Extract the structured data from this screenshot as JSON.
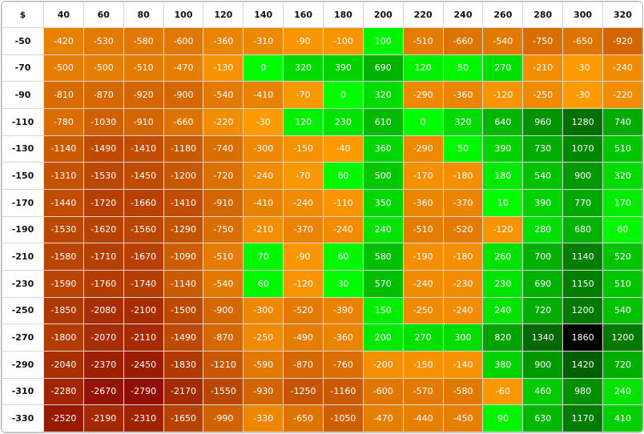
{
  "table": {
    "corner_label": "$",
    "columns": [
      "40",
      "60",
      "80",
      "100",
      "120",
      "140",
      "160",
      "180",
      "200",
      "220",
      "240",
      "260",
      "280",
      "300",
      "320"
    ],
    "rows": [
      {
        "label": "-50",
        "values": [
          "-420",
          "-530",
          "-580",
          "-600",
          "-360",
          "-310",
          "-90",
          "-100",
          "100",
          "-510",
          "-660",
          "-540",
          "-750",
          "-650",
          "-920"
        ]
      },
      {
        "label": "-70",
        "values": [
          "-500",
          "-500",
          "-510",
          "-470",
          "-130",
          "0",
          "320",
          "390",
          "690",
          "120",
          "50",
          "270",
          "-210",
          "-30",
          "-240"
        ]
      },
      {
        "label": "-90",
        "values": [
          "-810",
          "-870",
          "-920",
          "-900",
          "-540",
          "-410",
          "-70",
          "0",
          "320",
          "-290",
          "-360",
          "-120",
          "-250",
          "-30",
          "-220"
        ]
      },
      {
        "label": "-110",
        "values": [
          "-780",
          "-1030",
          "-910",
          "-660",
          "-220",
          "-30",
          "120",
          "230",
          "610",
          "0",
          "320",
          "640",
          "960",
          "1280",
          "740"
        ]
      },
      {
        "label": "-130",
        "values": [
          "-1140",
          "-1490",
          "-1410",
          "-1180",
          "-740",
          "-300",
          "-150",
          "-40",
          "360",
          "-290",
          "50",
          "390",
          "730",
          "1070",
          "510"
        ]
      },
      {
        "label": "-150",
        "values": [
          "-1310",
          "-1530",
          "-1450",
          "-1200",
          "-720",
          "-240",
          "-70",
          "60",
          "500",
          "-170",
          "-180",
          "180",
          "540",
          "900",
          "320"
        ]
      },
      {
        "label": "-170",
        "values": [
          "-1440",
          "-1720",
          "-1660",
          "-1410",
          "-910",
          "-410",
          "-240",
          "-110",
          "350",
          "-360",
          "-370",
          "10",
          "390",
          "770",
          "170"
        ]
      },
      {
        "label": "-190",
        "values": [
          "-1530",
          "-1620",
          "-1560",
          "-1290",
          "-750",
          "-210",
          "-370",
          "-240",
          "240",
          "-510",
          "-520",
          "-120",
          "280",
          "680",
          "60"
        ]
      },
      {
        "label": "-210",
        "values": [
          "-1580",
          "-1710",
          "-1670",
          "-1090",
          "-510",
          "70",
          "-90",
          "60",
          "580",
          "-190",
          "-180",
          "260",
          "700",
          "1140",
          "520"
        ]
      },
      {
        "label": "-230",
        "values": [
          "-1590",
          "-1760",
          "-1740",
          "-1140",
          "-540",
          "60",
          "-120",
          "30",
          "570",
          "-240",
          "-230",
          "230",
          "690",
          "1150",
          "510"
        ]
      },
      {
        "label": "-250",
        "values": [
          "-1850",
          "-2080",
          "-2100",
          "-1500",
          "-900",
          "-300",
          "-520",
          "-390",
          "150",
          "-250",
          "-240",
          "240",
          "720",
          "1200",
          "540"
        ]
      },
      {
        "label": "-270",
        "values": [
          "-1800",
          "-2070",
          "-2110",
          "-1490",
          "-870",
          "-250",
          "-490",
          "-360",
          "200",
          "270",
          "300",
          "820",
          "1340",
          "1860",
          "1200"
        ]
      },
      {
        "label": "-290",
        "values": [
          "-2040",
          "-2370",
          "-2450",
          "-1830",
          "-1210",
          "-590",
          "-870",
          "-760",
          "-200",
          "-150",
          "-140",
          "380",
          "900",
          "1420",
          "720"
        ]
      },
      {
        "label": "-310",
        "values": [
          "-2280",
          "-2670",
          "-2790",
          "-2170",
          "-1550",
          "-930",
          "-1250",
          "-1160",
          "-600",
          "-570",
          "-580",
          "-60",
          "460",
          "980",
          "240"
        ]
      },
      {
        "label": "-330",
        "values": [
          "-2520",
          "-2190",
          "-2310",
          "-1650",
          "-990",
          "-330",
          "-650",
          "-1050",
          "-470",
          "-440",
          "-450",
          "90",
          "630",
          "1170",
          "410"
        ]
      }
    ]
  },
  "colors": {
    "negative_light": "#ff9e00",
    "negative_dark": "#8e0e00",
    "negative_max_abs": 2790,
    "positive_light": "#00ff00",
    "positive_dark": "#006000",
    "positive_max": 1420,
    "peak": "#000000",
    "peak_threshold": 1800,
    "text_light": "#ffffff",
    "text_dark": "#111111"
  }
}
